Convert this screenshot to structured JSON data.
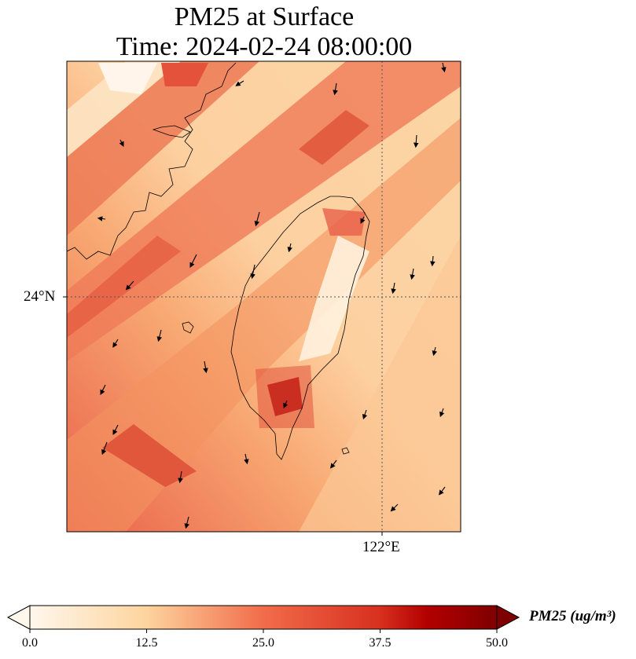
{
  "title": {
    "line1": "PM25 at Surface",
    "line2": "Time: 2024-02-24 08:00:00"
  },
  "map": {
    "type": "geographic raster with wind vectors",
    "region": "Taiwan and Taiwan Strait",
    "variable": "PM25",
    "colormap": "OrRd",
    "colors": {
      "low": "#fff7ec",
      "mid_low": "#fdd49e",
      "mid": "#f16c4a",
      "high": "#b30000",
      "max": "#7f0000"
    },
    "gridlines": "dotted",
    "lat_label": "24°N",
    "lon_label": "122°E",
    "wind_vectors": true,
    "coastline": true
  },
  "colorbar": {
    "ticks": [
      "0.0",
      "12.5",
      "25.0",
      "37.5",
      "50.0"
    ],
    "min": 0,
    "max": 50,
    "extend": "both",
    "label": "PM25 (ug/m³)"
  }
}
